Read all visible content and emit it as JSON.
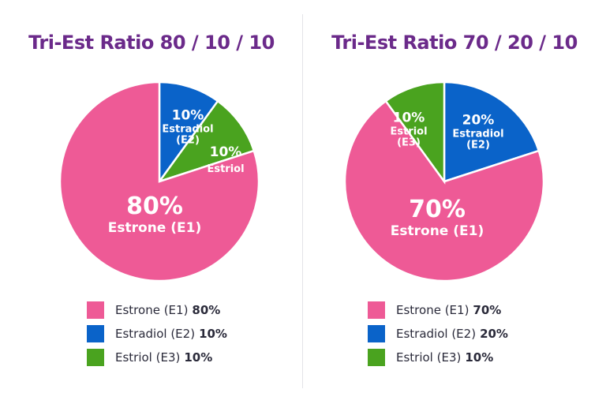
{
  "colors": {
    "Estrone": "#ee5a96",
    "Estradiol": "#0a63c9",
    "Estriol": "#4aa31f",
    "title": "#6b2a8a"
  },
  "chart_data": [
    {
      "type": "pie",
      "title": "Tri-Est Ratio 80 / 10 / 10",
      "slices": [
        {
          "label": "Estrone (E1)",
          "value": 80,
          "pct": "80%",
          "slice_name": "Estrone (E1)",
          "legend": "Estrone (E1)"
        },
        {
          "label": "Estradiol (E2)",
          "value": 10,
          "pct": "10%",
          "slice_name": "Estradiol (E2)",
          "legend": "Estradiol (E2)"
        },
        {
          "label": "Estriol",
          "value": 10,
          "pct": "10%",
          "slice_name": "Estriol",
          "legend": "Estriol (E3)"
        }
      ]
    },
    {
      "type": "pie",
      "title": "Tri-Est Ratio 70 / 20 / 10",
      "slices": [
        {
          "label": "Estrone (E1)",
          "value": 70,
          "pct": "70%",
          "slice_name": "Estrone (E1)",
          "legend": "Estrone (E1)"
        },
        {
          "label": "Estradiol (E2)",
          "value": 20,
          "pct": "20%",
          "slice_name": "Estradiol (E2)",
          "legend": "Estradiol (E2)"
        },
        {
          "label": "Estriol (E3)",
          "value": 10,
          "pct": "10%",
          "slice_name": "Estriol (E3)",
          "legend": "Estriol (E3)"
        }
      ]
    }
  ]
}
